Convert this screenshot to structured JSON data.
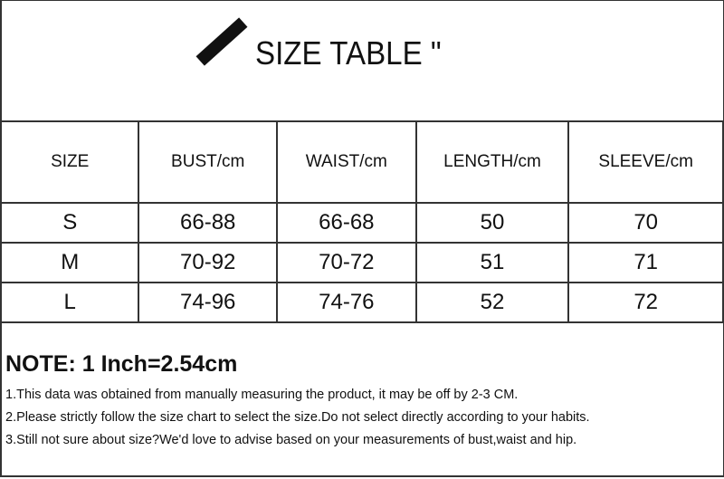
{
  "title": "SIZE TABLE \"",
  "table": {
    "headers": [
      "SIZE",
      "BUST/cm",
      "WAIST/cm",
      "LENGTH/cm",
      "SLEEVE/cm"
    ],
    "rows": [
      [
        "S",
        "66-88",
        "66-68",
        "50",
        "70"
      ],
      [
        "M",
        "70-92",
        "70-72",
        "51",
        "71"
      ],
      [
        "L",
        "74-96",
        "74-76",
        "52",
        "72"
      ]
    ]
  },
  "note": {
    "heading": "NOTE: 1 Inch=2.54cm",
    "lines": [
      "1.This data was obtained from manually measuring the product, it may be off by 2-3 CM.",
      "2.Please strictly follow the size chart to select the size.Do not select directly according to your habits.",
      "3.Still not sure about size?We'd love to advise based on your measurements of bust,waist and hip."
    ]
  }
}
